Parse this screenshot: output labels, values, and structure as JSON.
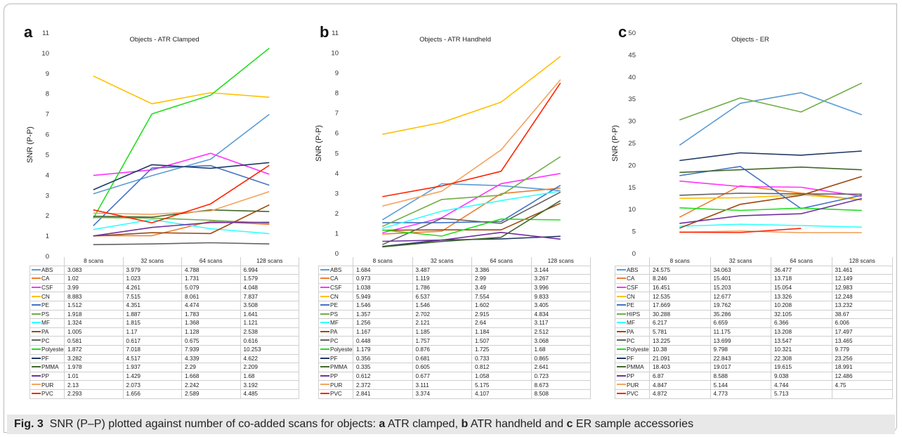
{
  "caption": {
    "fig_label": "Fig. 3",
    "text_1": "SNR (P–P) plotted against number of co-added scans for objects:",
    "a_label": "a",
    "text_2": "ATR clamped,",
    "b_label": "b",
    "text_3": "ATR handheld and",
    "c_label": "c",
    "text_4": "ER sample accessories"
  },
  "colors": {
    "ABS": "#5b9bd5",
    "CA": "#ed7d31",
    "CSF": "#ff33ff",
    "CN": "#ffc000",
    "PE": "#4472c4",
    "PS": "#70ad47",
    "HIPS": "#70ad47",
    "MF": "#33ffff",
    "PA": "#9e480e",
    "PC": "#636363",
    "Polyester": "#22dd22",
    "PF": "#203864",
    "PMMA": "#43682b",
    "PP": "#7030a0",
    "PUR": "#f4a460",
    "PVC": "#ff2200"
  },
  "chart_data": [
    {
      "panel": "a",
      "type": "line",
      "title": "Objects - ATR Clamped",
      "ylabel": "SNR (P-P)",
      "ylim": [
        0,
        11
      ],
      "yticks": [
        0,
        1,
        2,
        3,
        4,
        5,
        6,
        7,
        8,
        9,
        10,
        11
      ],
      "categories": [
        "8 scans",
        "32 scans",
        "64 scans",
        "128 scans"
      ],
      "series": [
        {
          "name": "ABS",
          "values": [
            3.083,
            3.979,
            4.788,
            6.994
          ]
        },
        {
          "name": "CA",
          "values": [
            1.02,
            1.023,
            1.731,
            1.579
          ]
        },
        {
          "name": "CSF",
          "values": [
            3.99,
            4.261,
            5.079,
            4.048
          ]
        },
        {
          "name": "CN",
          "values": [
            8.883,
            7.515,
            8.061,
            7.837
          ]
        },
        {
          "name": "PE",
          "values": [
            1.512,
            4.351,
            4.474,
            3.508
          ]
        },
        {
          "name": "PS",
          "values": [
            1.918,
            1.887,
            1.783,
            1.641
          ]
        },
        {
          "name": "MF",
          "values": [
            1.324,
            1.815,
            1.368,
            1.121
          ]
        },
        {
          "name": "PA",
          "values": [
            1.005,
            1.17,
            1.128,
            2.538
          ]
        },
        {
          "name": "PC",
          "values": [
            0.581,
            0.617,
            0.675,
            0.616
          ]
        },
        {
          "name": "Polyester",
          "values": [
            1.872,
            7.018,
            7.939,
            10.253
          ]
        },
        {
          "name": "PF",
          "values": [
            3.282,
            4.517,
            4.339,
            4.622
          ]
        },
        {
          "name": "PMMA",
          "values": [
            1.978,
            1.937,
            2.29,
            2.209
          ]
        },
        {
          "name": "PP",
          "values": [
            1.01,
            1.429,
            1.668,
            1.68
          ]
        },
        {
          "name": "PUR",
          "values": [
            2.13,
            2.073,
            2.242,
            3.192
          ]
        },
        {
          "name": "PVC",
          "values": [
            2.293,
            1.656,
            2.589,
            4.485
          ]
        }
      ]
    },
    {
      "panel": "b",
      "type": "line",
      "title": "Objects - ATR Handheld",
      "ylabel": "SNR (P-P)",
      "ylim": [
        0,
        11
      ],
      "yticks": [
        0,
        1,
        2,
        3,
        4,
        5,
        6,
        7,
        8,
        9,
        10,
        11
      ],
      "categories": [
        "8 scans",
        "32 scans",
        "64 scans",
        "128 scans"
      ],
      "series": [
        {
          "name": "ABS",
          "values": [
            1.684,
            3.487,
            3.386,
            3.144
          ]
        },
        {
          "name": "CA",
          "values": [
            0.973,
            1.119,
            2.99,
            3.267
          ]
        },
        {
          "name": "CSF",
          "values": [
            1.038,
            1.786,
            3.49,
            3.996
          ]
        },
        {
          "name": "CN",
          "values": [
            5.949,
            6.537,
            7.554,
            9.833
          ]
        },
        {
          "name": "PE",
          "values": [
            1.546,
            1.546,
            1.602,
            3.405
          ]
        },
        {
          "name": "PS",
          "values": [
            1.357,
            2.702,
            2.915,
            4.834
          ]
        },
        {
          "name": "MF",
          "values": [
            1.256,
            2.121,
            2.64,
            3.117
          ]
        },
        {
          "name": "PA",
          "values": [
            1.167,
            1.185,
            1.184,
            2.512
          ]
        },
        {
          "name": "PC",
          "values": [
            0.448,
            1.757,
            1.507,
            3.068
          ]
        },
        {
          "name": "Polyester",
          "values": [
            1.179,
            0.876,
            1.725,
            1.68
          ]
        },
        {
          "name": "PF",
          "values": [
            0.356,
            0.681,
            0.733,
            0.865
          ]
        },
        {
          "name": "PMMA",
          "values": [
            0.335,
            0.605,
            0.812,
            2.641
          ]
        },
        {
          "name": "PP",
          "values": [
            0.612,
            0.677,
            1.058,
            0.723
          ]
        },
        {
          "name": "PUR",
          "values": [
            2.372,
            3.111,
            5.175,
            8.673
          ]
        },
        {
          "name": "PVC",
          "values": [
            2.841,
            3.374,
            4.107,
            8.508
          ]
        }
      ]
    },
    {
      "panel": "c",
      "type": "line",
      "title": "Objects - ER",
      "ylabel": "SNR (P-P)",
      "ylim": [
        0,
        50
      ],
      "yticks": [
        0,
        5,
        10,
        15,
        20,
        25,
        30,
        35,
        40,
        45,
        50
      ],
      "categories": [
        "8 scans",
        "32 scans",
        "64 scans",
        "128 scans"
      ],
      "series": [
        {
          "name": "ABS",
          "values": [
            24.575,
            34.063,
            36.477,
            31.461
          ]
        },
        {
          "name": "CA",
          "values": [
            8.246,
            15.401,
            13.718,
            12.149
          ]
        },
        {
          "name": "CSF",
          "values": [
            16.451,
            15.203,
            15.054,
            12.983
          ]
        },
        {
          "name": "CN",
          "values": [
            12.535,
            12.677,
            13.326,
            12.248
          ]
        },
        {
          "name": "PE",
          "values": [
            17.669,
            19.762,
            10.208,
            13.232
          ]
        },
        {
          "name": "HIPS",
          "values": [
            30.288,
            35.286,
            32.105,
            38.67
          ]
        },
        {
          "name": "MF",
          "values": [
            6.217,
            6.659,
            6.366,
            6.006
          ]
        },
        {
          "name": "PA",
          "values": [
            5.781,
            11.175,
            13.208,
            17.497
          ]
        },
        {
          "name": "PC",
          "values": [
            13.225,
            13.699,
            13.547,
            13.465
          ]
        },
        {
          "name": "Polyester",
          "values": [
            10.38,
            9.798,
            10.321,
            9.779
          ]
        },
        {
          "name": "PF",
          "values": [
            21.091,
            22.843,
            22.308,
            23.256
          ]
        },
        {
          "name": "PMMA",
          "values": [
            18.403,
            19.017,
            19.615,
            18.991
          ]
        },
        {
          "name": "PP",
          "values": [
            6.87,
            8.588,
            9.038,
            12.486
          ]
        },
        {
          "name": "PUR",
          "values": [
            4.847,
            5.144,
            4.744,
            4.75
          ]
        },
        {
          "name": "PVC",
          "values": [
            4.872,
            4.773,
            5.713,
            null
          ]
        }
      ]
    }
  ]
}
